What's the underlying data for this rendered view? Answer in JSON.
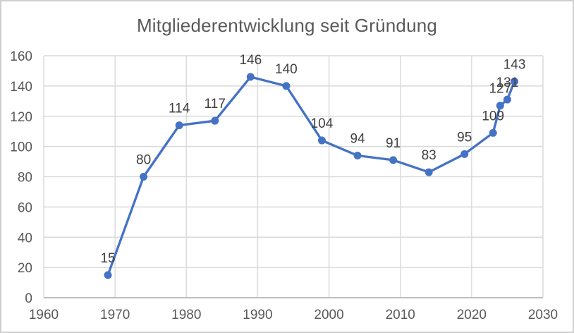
{
  "chart_data": {
    "type": "line",
    "title": "Mitgliederentwicklung seit Gründung",
    "xlabel": "",
    "ylabel": "",
    "x": [
      1969,
      1974,
      1979,
      1984,
      1989,
      1994,
      1999,
      2004,
      2009,
      2014,
      2019,
      2023,
      2024,
      2025,
      2026
    ],
    "values": [
      15,
      80,
      114,
      117,
      146,
      140,
      104,
      94,
      91,
      83,
      95,
      109,
      127,
      131,
      143
    ],
    "data_labels_visible": true,
    "xlim": [
      1960,
      2030
    ],
    "ylim": [
      0,
      160
    ],
    "x_ticks": [
      1960,
      1970,
      1980,
      1990,
      2000,
      2010,
      2020,
      2030
    ],
    "y_ticks": [
      0,
      20,
      40,
      60,
      80,
      100,
      120,
      140,
      160
    ],
    "grid": true,
    "legend": "none",
    "marker": "circle",
    "colors": {
      "series": "#4472C4",
      "grid": "#d9d9d9",
      "axis_line": "#bfbfbf",
      "axis_text": "#595959",
      "data_label_text": "#404040",
      "title_text": "#595959",
      "frame_border": "#d0cece",
      "background": "#ffffff"
    }
  }
}
